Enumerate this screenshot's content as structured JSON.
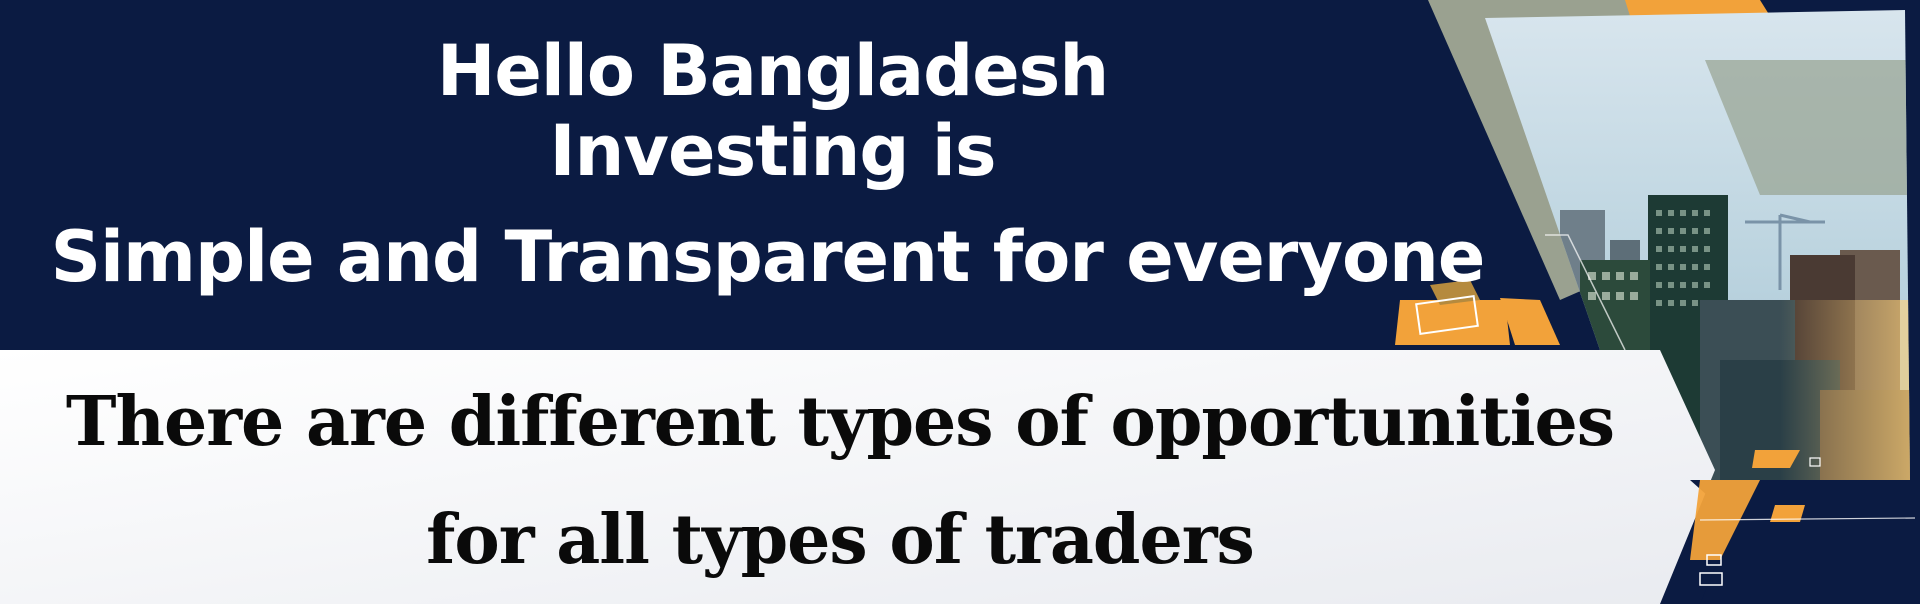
{
  "headline": {
    "line1": "Hello Bangladesh",
    "line2": "Investing is",
    "line3": "Simple and Transparent for everyone"
  },
  "subtext": {
    "line1": "There are different types of opportunities",
    "line2": "for all types of traders"
  },
  "colors": {
    "navy": "#0b1b42",
    "accent_orange": "#f2a23a",
    "panel_white": "#f4f5f8",
    "sage_gray": "#9aa190"
  },
  "illustration": "city-skyline-with-construction-crane"
}
